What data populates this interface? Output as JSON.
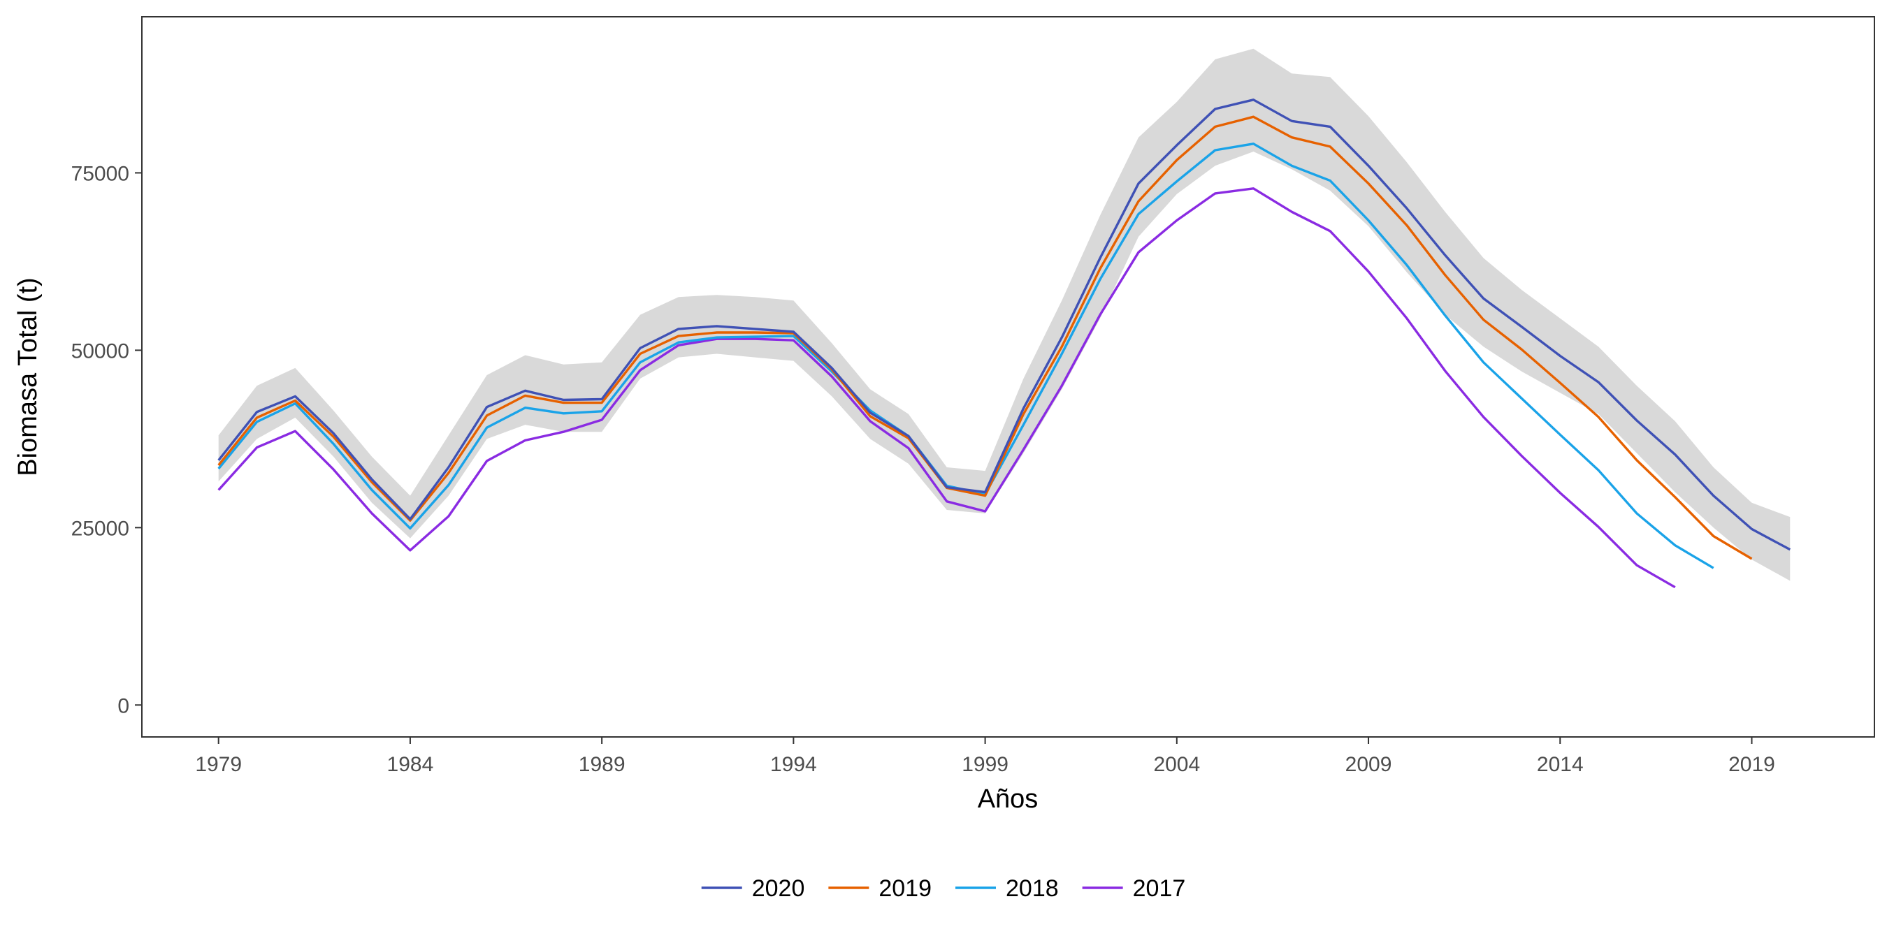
{
  "chart_data": {
    "type": "line",
    "xlabel": "Años",
    "ylabel": "Biomasa Total (t)",
    "xlim": [
      1977,
      2022.2
    ],
    "ylim": [
      -4500,
      97000
    ],
    "x_ticks": [
      1979,
      1984,
      1989,
      1994,
      1999,
      2004,
      2009,
      2014,
      2019
    ],
    "y_ticks": [
      0,
      25000,
      50000,
      75000
    ],
    "grid": false,
    "legend_position": "bottom",
    "band": {
      "color": "#d9d9d9",
      "x": [
        1979,
        1980,
        1981,
        1982,
        1983,
        1984,
        1985,
        1986,
        1987,
        1988,
        1989,
        1990,
        1991,
        1992,
        1993,
        1994,
        1995,
        1996,
        1997,
        1998,
        1999,
        2000,
        2001,
        2002,
        2003,
        2004,
        2005,
        2006,
        2007,
        2008,
        2009,
        2010,
        2011,
        2012,
        2013,
        2014,
        2015,
        2016,
        2017,
        2018,
        2019,
        2020
      ],
      "lower": [
        31500,
        37500,
        40500,
        35000,
        28500,
        23500,
        29500,
        37500,
        39500,
        38500,
        38500,
        46000,
        49000,
        49500,
        49000,
        48500,
        43500,
        37500,
        34000,
        27500,
        27000,
        35500,
        44500,
        54500,
        66000,
        72000,
        76000,
        78000,
        75500,
        72500,
        67500,
        61000,
        55000,
        50500,
        47000,
        44000,
        41000,
        35500,
        30000,
        25000,
        20500,
        17500
      ],
      "upper": [
        38000,
        45000,
        47500,
        41500,
        35000,
        29500,
        38000,
        46500,
        49300,
        48000,
        48300,
        55000,
        57500,
        57800,
        57500,
        57000,
        51000,
        44500,
        41000,
        33500,
        33000,
        46000,
        57000,
        69000,
        80000,
        85000,
        91000,
        92500,
        89000,
        88500,
        83000,
        76500,
        69500,
        63000,
        58500,
        54500,
        50500,
        45000,
        40000,
        33500,
        28500,
        26500
      ]
    },
    "series": [
      {
        "name": "2020",
        "color": "#3f51b5",
        "x": [
          1979,
          1980,
          1981,
          1982,
          1983,
          1984,
          1985,
          1986,
          1987,
          1988,
          1989,
          1990,
          1991,
          1992,
          1993,
          1994,
          1995,
          1996,
          1997,
          1998,
          1999,
          2000,
          2001,
          2002,
          2003,
          2004,
          2005,
          2006,
          2007,
          2008,
          2009,
          2010,
          2011,
          2012,
          2013,
          2014,
          2015,
          2016,
          2017,
          2018,
          2019,
          2020
        ],
        "values": [
          34500,
          41300,
          43500,
          38300,
          31800,
          26200,
          33500,
          42000,
          44300,
          43000,
          43100,
          50300,
          53000,
          53400,
          53000,
          52600,
          47500,
          41200,
          37900,
          30700,
          30000,
          41800,
          51800,
          63000,
          73500,
          78900,
          84000,
          85300,
          82300,
          81500,
          76000,
          70000,
          63400,
          57300,
          53300,
          49200,
          45500,
          40100,
          35300,
          29500,
          24800,
          21900
        ]
      },
      {
        "name": "2019",
        "color": "#e66100",
        "x": [
          1979,
          1980,
          1981,
          1982,
          1983,
          1984,
          1985,
          1986,
          1987,
          1988,
          1989,
          1990,
          1991,
          1992,
          1993,
          1994,
          1995,
          1996,
          1997,
          1998,
          1999,
          2000,
          2001,
          2002,
          2003,
          2004,
          2005,
          2006,
          2007,
          2008,
          2009,
          2010,
          2011,
          2012,
          2013,
          2014,
          2015,
          2016,
          2017,
          2018,
          2019
        ],
        "values": [
          33800,
          40500,
          42900,
          37800,
          31400,
          26000,
          32700,
          40800,
          43600,
          42600,
          42600,
          49500,
          52000,
          52500,
          52500,
          52400,
          47300,
          40700,
          37600,
          30600,
          29500,
          41000,
          50500,
          61500,
          71000,
          76800,
          81500,
          82900,
          80000,
          78700,
          73500,
          67600,
          60600,
          54300,
          50100,
          45400,
          40600,
          34500,
          29300,
          23800,
          20600
        ]
      },
      {
        "name": "2018",
        "color": "#1aa3e8",
        "x": [
          1979,
          1980,
          1981,
          1982,
          1983,
          1984,
          1985,
          1986,
          1987,
          1988,
          1989,
          1990,
          1991,
          1992,
          1993,
          1994,
          1995,
          1996,
          1997,
          1998,
          1999,
          2000,
          2001,
          2002,
          2003,
          2004,
          2005,
          2006,
          2007,
          2008,
          2009,
          2010,
          2011,
          2012,
          2013,
          2014,
          2015,
          2016,
          2017,
          2018
        ],
        "values": [
          33300,
          39900,
          42500,
          36800,
          30300,
          24900,
          31000,
          39100,
          41900,
          41100,
          41400,
          48300,
          51100,
          51800,
          51900,
          52000,
          47000,
          41500,
          37900,
          30900,
          29700,
          39500,
          49500,
          60000,
          69200,
          73800,
          78200,
          79100,
          76000,
          73900,
          68300,
          62000,
          54900,
          48300,
          43200,
          38100,
          33100,
          27000,
          22500,
          19300
        ]
      },
      {
        "name": "2017",
        "color": "#8a2be2",
        "x": [
          1979,
          1980,
          1981,
          1982,
          1983,
          1984,
          1985,
          1986,
          1987,
          1988,
          1989,
          1990,
          1991,
          1992,
          1993,
          1994,
          1995,
          1996,
          1997,
          1998,
          1999,
          2000,
          2001,
          2002,
          2003,
          2004,
          2005,
          2006,
          2007,
          2008,
          2009,
          2010,
          2011,
          2012,
          2013,
          2014,
          2015,
          2016,
          2017
        ],
        "values": [
          30300,
          36300,
          38600,
          33200,
          27000,
          21800,
          26600,
          34400,
          37300,
          38500,
          40200,
          47200,
          50700,
          51600,
          51600,
          51400,
          46300,
          40000,
          36200,
          28700,
          27300,
          36000,
          45000,
          55000,
          63800,
          68300,
          72100,
          72800,
          69500,
          66800,
          61100,
          54500,
          47100,
          40600,
          35100,
          29900,
          25100,
          19700,
          16600
        ]
      }
    ]
  }
}
